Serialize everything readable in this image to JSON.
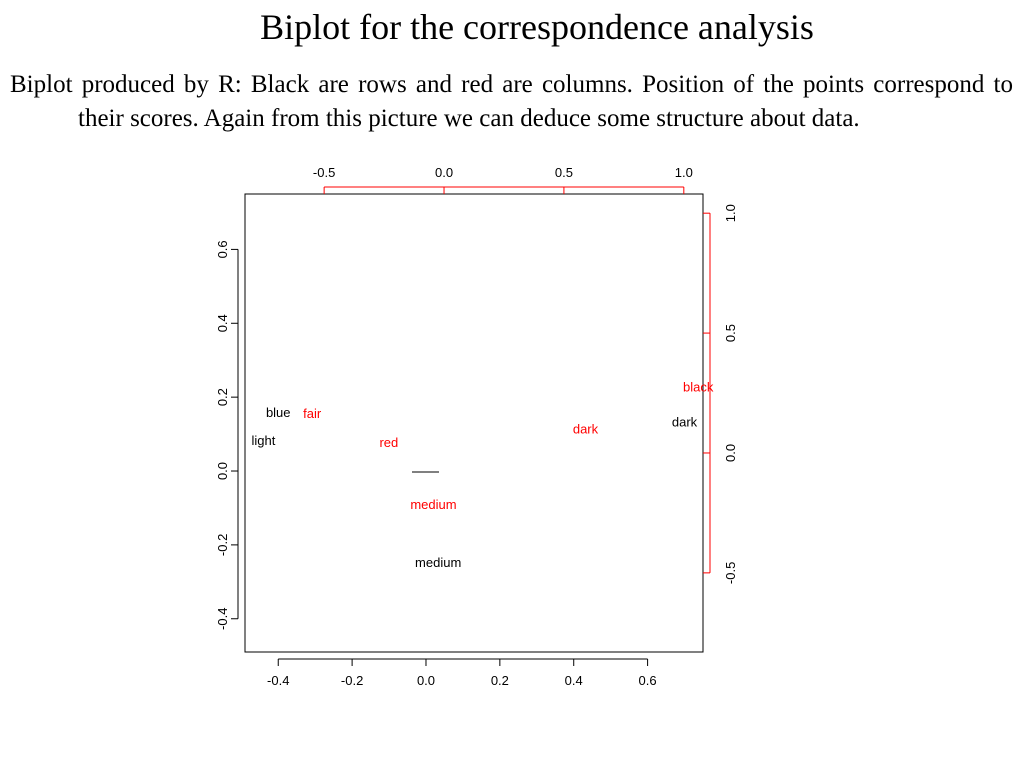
{
  "slide": {
    "title": "Biplot for the correspondence analysis",
    "caption": "Biplot produced by R: Black are rows and red are columns. Position of the points correspond to their scores. Again from this picture we can deduce some structure about data."
  },
  "colors": {
    "rows": "#000000",
    "columns": "#ff0000",
    "frame": "#000000"
  },
  "chart_data": {
    "type": "scatter",
    "title": "",
    "xlabel": "",
    "ylabel": "",
    "grid": false,
    "xlim": [
      -0.49,
      0.75
    ],
    "ylim": [
      -0.49,
      0.75
    ],
    "xticks": [
      "-0.4",
      "-0.2",
      "0.0",
      "0.2",
      "0.4",
      "0.6"
    ],
    "yticks": [
      "-0.4",
      "-0.2",
      "0.0",
      "0.2",
      "0.4",
      "0.6"
    ],
    "top_axis": {
      "lim": [
        -0.83,
        1.08
      ],
      "ticks": [
        "-0.5",
        "0.0",
        "0.5",
        "1.0"
      ],
      "color": "#ff0000"
    },
    "right_axis": {
      "lim": [
        -0.83,
        1.08
      ],
      "ticks": [
        "-0.5",
        "0.0",
        "0.5",
        "1.0"
      ],
      "color": "#ff0000"
    },
    "series": [
      {
        "name": "rows",
        "color": "#000000",
        "axes": "primary",
        "points": [
          {
            "label": "blue",
            "x": -0.4,
            "y": 0.155
          },
          {
            "label": "light",
            "x": -0.44,
            "y": 0.08
          },
          {
            "label": "medium",
            "x": 0.033,
            "y": -0.25
          },
          {
            "label": "dark",
            "x": 0.7,
            "y": 0.13
          }
        ]
      },
      {
        "name": "columns",
        "color": "#ff0000",
        "axes": "secondary",
        "points": [
          {
            "label": "fair",
            "x": -0.55,
            "y": 0.16
          },
          {
            "label": "red",
            "x": -0.23,
            "y": 0.04
          },
          {
            "label": "medium",
            "x": -0.044,
            "y": -0.22
          },
          {
            "label": "dark",
            "x": 0.59,
            "y": 0.095
          },
          {
            "label": "black",
            "x": 1.06,
            "y": 0.27
          }
        ]
      }
    ]
  }
}
